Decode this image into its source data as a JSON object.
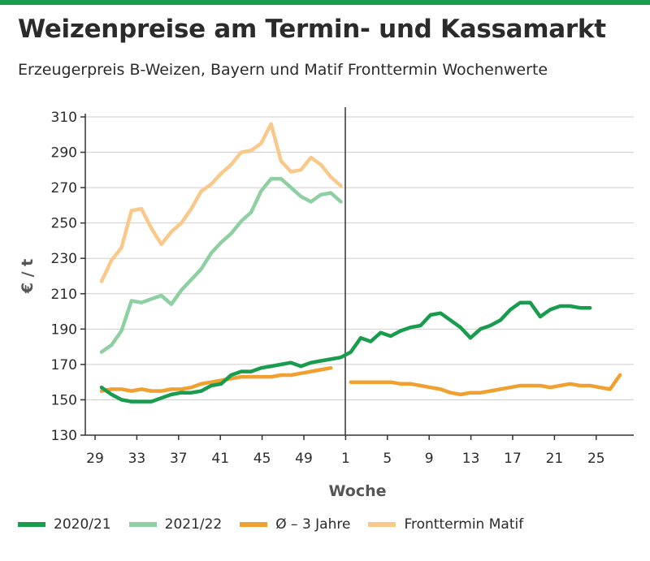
{
  "colors": {
    "topbar": "#1a9c4e",
    "grid": "#cfcfcf",
    "axis": "#333333"
  },
  "chart_data": {
    "type": "line",
    "title": "Weizenpreise am Termin- und Kassamarkt",
    "subtitle": "Erzeugerpreis B-Weizen, Bayern und Matif Fronttermin Wochenwerte",
    "xlabel": "Woche",
    "ylabel": "€ / t",
    "ylim": [
      130,
      310
    ],
    "yticks": [
      "130",
      "150",
      "170",
      "190",
      "210",
      "230",
      "250",
      "270",
      "290",
      "310"
    ],
    "xticks": [
      "29",
      "33",
      "37",
      "41",
      "45",
      "49",
      "1",
      "5",
      "9",
      "13",
      "17",
      "21",
      "25"
    ],
    "grid": true,
    "legend_position": "bottom",
    "series": [
      {
        "name": "2020/21",
        "color": "#1a9c4e",
        "values": [
          157,
          153,
          150,
          149,
          149,
          149,
          151,
          153,
          154,
          154,
          155,
          158,
          159,
          164,
          166,
          166,
          168,
          169,
          170,
          171,
          169,
          171,
          172,
          173,
          174,
          177,
          185,
          183,
          188,
          186,
          189,
          191,
          192,
          198,
          199,
          195,
          191,
          185,
          190,
          192,
          195,
          201,
          205,
          205,
          197,
          201,
          203,
          203,
          202,
          202
        ]
      },
      {
        "name": "2021/22",
        "color": "#8fd0a2",
        "values": [
          177,
          181,
          189,
          206,
          205,
          207,
          209,
          204,
          212,
          218,
          224,
          233,
          239,
          244,
          251,
          256,
          268,
          275,
          275,
          270,
          265,
          262,
          266,
          267,
          262
        ]
      },
      {
        "name": "Ø – 3 Jahre",
        "color": "#f0a030",
        "values": [
          155,
          156,
          156,
          155,
          156,
          155,
          155,
          156,
          156,
          157,
          159,
          160,
          161,
          162,
          163,
          163,
          163,
          163,
          164,
          164,
          165,
          166,
          167,
          168,
          null,
          160,
          160,
          160,
          160,
          160,
          159,
          159,
          158,
          157,
          156,
          154,
          153,
          154,
          154,
          155,
          156,
          157,
          158,
          158,
          158,
          157,
          158,
          159,
          158,
          158,
          157,
          156,
          164
        ]
      },
      {
        "name": "Fronttermin Matif",
        "color": "#f9c98b",
        "values": [
          217,
          229,
          236,
          257,
          258,
          247,
          238,
          245,
          250,
          258,
          268,
          272,
          278,
          283,
          290,
          291,
          295,
          306,
          285,
          279,
          280,
          287,
          283,
          276,
          271
        ]
      }
    ]
  }
}
